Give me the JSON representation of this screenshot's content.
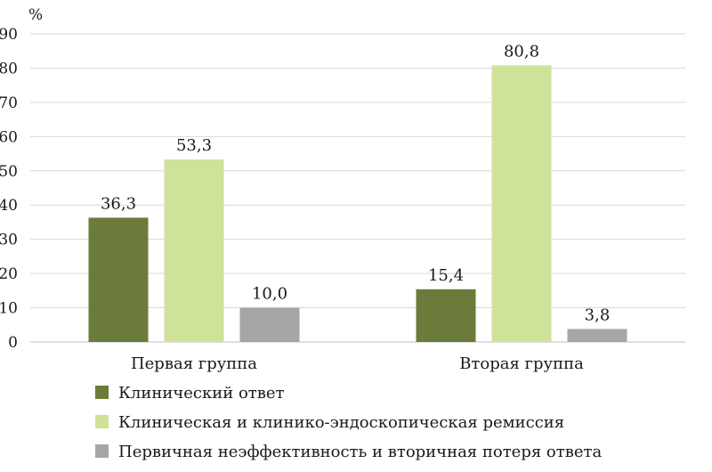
{
  "chart_data": {
    "type": "bar",
    "y_unit": "%",
    "categories": [
      "Первая группа",
      "Вторая группа"
    ],
    "series": [
      {
        "name": "Клинический ответ",
        "values": [
          36.3,
          15.4
        ],
        "labels": [
          "36,3",
          "15,4"
        ],
        "color": "#6b7b3a"
      },
      {
        "name": "Клиническая и клинико-эндоскопическая ремиссия",
        "values": [
          53.3,
          80.8
        ],
        "labels": [
          "53,3",
          "80,8"
        ],
        "color": "#cfe29a"
      },
      {
        "name": "Первичная неэффективность и вторичная потеря ответа",
        "values": [
          10.0,
          3.8
        ],
        "labels": [
          "10,0",
          "3,8"
        ],
        "color": "#a6a6a6"
      }
    ],
    "ylim": [
      0,
      90
    ],
    "yticks": [
      0,
      10,
      20,
      30,
      40,
      50,
      60,
      70,
      80,
      90
    ],
    "grid": true,
    "legend_position": "bottom-left"
  }
}
